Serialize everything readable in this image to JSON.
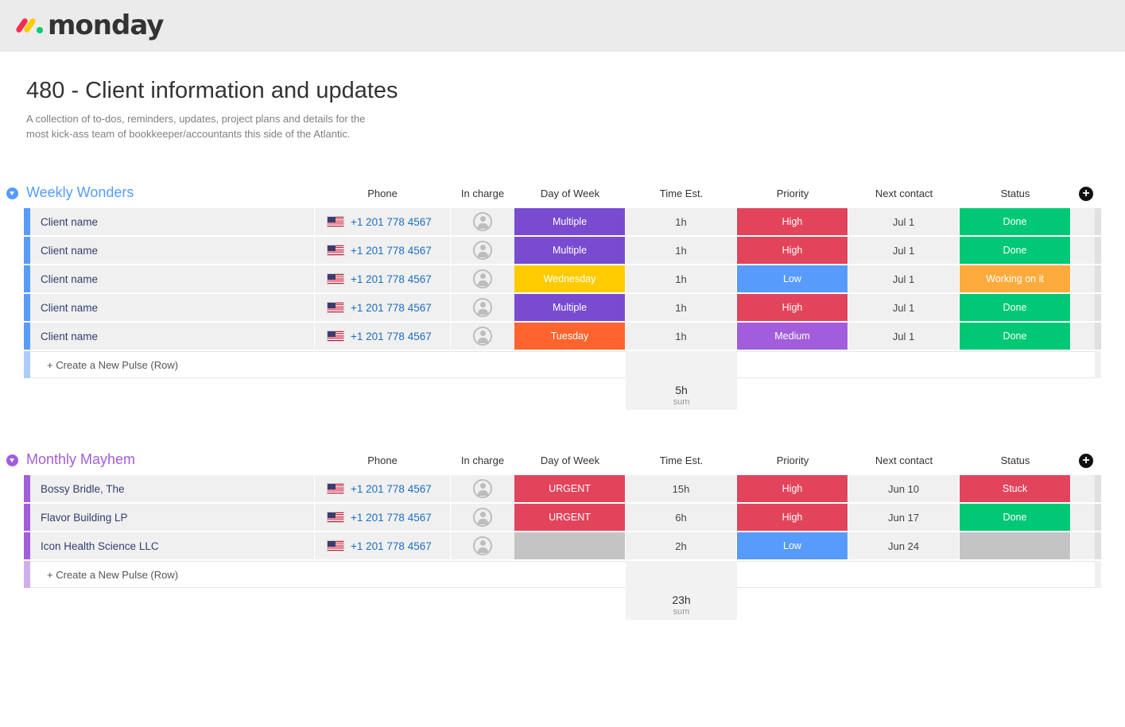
{
  "app": {
    "logo_text": "monday"
  },
  "board": {
    "title": "480 - Client information and updates",
    "description": "A collection of to-dos, reminders, updates, project plans and details for the most kick-ass team of bookkeeper/accountants this side of the Atlantic."
  },
  "columns": [
    "Phone",
    "In charge",
    "Day of Week",
    "Time Est.",
    "Priority",
    "Next contact",
    "Status"
  ],
  "create_label": "+ Create a New Pulse (Row)",
  "colors": {
    "blue_group": "#579bfc",
    "purple_group": "#a25ddc",
    "multiple": "#784bd1",
    "high": "#e2445c",
    "low": "#579bfc",
    "medium": "#a25ddc",
    "wednesday": "#ffcb00",
    "tuesday": "#ff642e",
    "done": "#00c875",
    "working": "#fdab3d",
    "stuck": "#e2445c",
    "empty": "#c4c4c4"
  },
  "groups": [
    {
      "name": "Weekly Wonders",
      "color": "#579bfc",
      "rows": [
        {
          "name": "Client name",
          "phone": "+1 201 778 4567",
          "dow": "Multiple",
          "dow_color": "#784bd1",
          "time": "1h",
          "priority": "High",
          "priority_color": "#e2445c",
          "next": "Jul 1",
          "status": "Done",
          "status_color": "#00c875"
        },
        {
          "name": "Client name",
          "phone": "+1 201 778 4567",
          "dow": "Multiple",
          "dow_color": "#784bd1",
          "time": "1h",
          "priority": "High",
          "priority_color": "#e2445c",
          "next": "Jul 1",
          "status": "Done",
          "status_color": "#00c875"
        },
        {
          "name": "Client name",
          "phone": "+1 201 778 4567",
          "dow": "Wednesday",
          "dow_color": "#ffcb00",
          "time": "1h",
          "priority": "Low",
          "priority_color": "#579bfc",
          "next": "Jul 1",
          "status": "Working on it",
          "status_color": "#fdab3d"
        },
        {
          "name": "Client name",
          "phone": "+1 201 778 4567",
          "dow": "Multiple",
          "dow_color": "#784bd1",
          "time": "1h",
          "priority": "High",
          "priority_color": "#e2445c",
          "next": "Jul 1",
          "status": "Done",
          "status_color": "#00c875"
        },
        {
          "name": "Client name",
          "phone": "+1 201 778 4567",
          "dow": "Tuesday",
          "dow_color": "#ff642e",
          "time": "1h",
          "priority": "Medium",
          "priority_color": "#a25ddc",
          "next": "Jul 1",
          "status": "Done",
          "status_color": "#00c875"
        }
      ],
      "sum_value": "5h",
      "sum_label": "sum"
    },
    {
      "name": "Monthly Mayhem",
      "color": "#a25ddc",
      "rows": [
        {
          "name": "Bossy Bridle, The",
          "phone": "+1 201 778 4567",
          "dow": "URGENT",
          "dow_color": "#e2445c",
          "time": "15h",
          "priority": "High",
          "priority_color": "#e2445c",
          "next": "Jun 10",
          "status": "Stuck",
          "status_color": "#e2445c"
        },
        {
          "name": "Flavor Building LP",
          "phone": "+1 201 778 4567",
          "dow": "URGENT",
          "dow_color": "#e2445c",
          "time": "6h",
          "priority": "High",
          "priority_color": "#e2445c",
          "next": "Jun 17",
          "status": "Done",
          "status_color": "#00c875"
        },
        {
          "name": "Icon Health Science LLC",
          "phone": "+1 201 778 4567",
          "dow": "",
          "dow_color": "#c4c4c4",
          "time": "2h",
          "priority": "Low",
          "priority_color": "#579bfc",
          "next": "Jun 24",
          "status": "",
          "status_color": "#c4c4c4"
        }
      ],
      "sum_value": "23h",
      "sum_label": "sum"
    }
  ]
}
